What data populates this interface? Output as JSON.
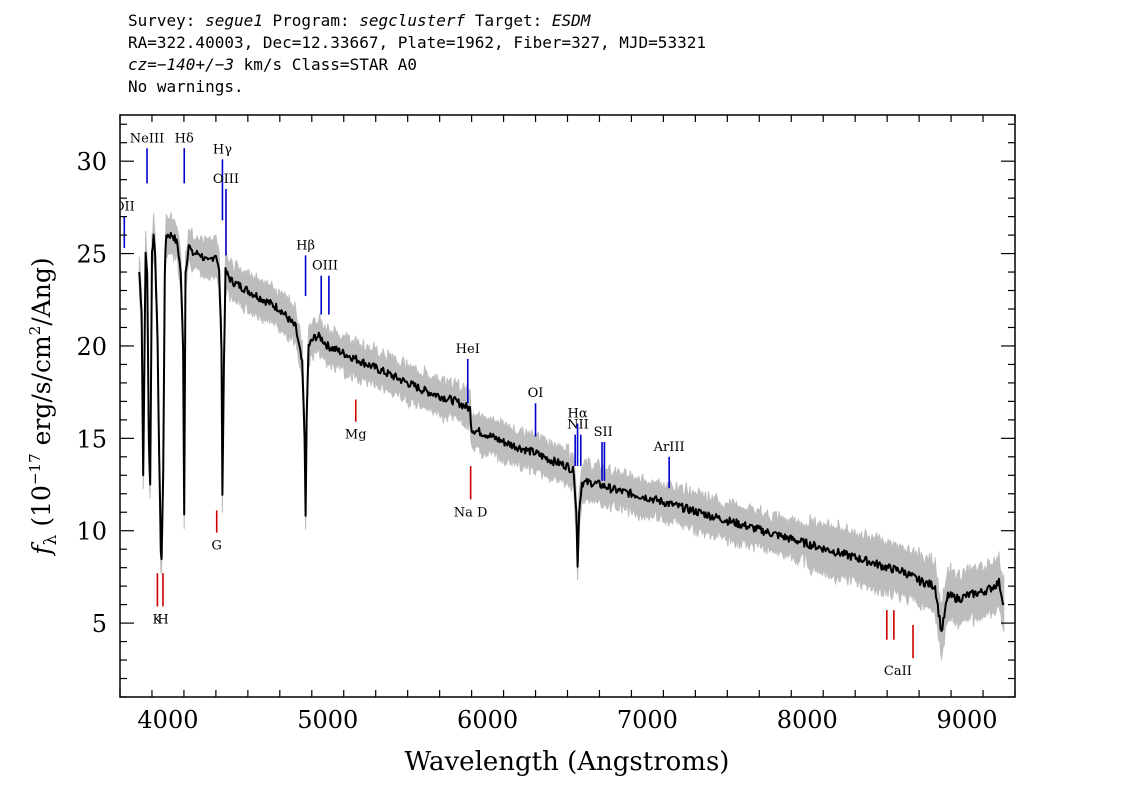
{
  "header": {
    "survey_label": "Survey:",
    "survey": "segue1",
    "program_label": "Program:",
    "program": "segclusterf",
    "target_label": "Target:",
    "target": "ESDM",
    "line2": "RA=322.40003, Dec=12.33667, Plate=1962, Fiber=327, MJD=53321",
    "cz_label": "cz=",
    "cz_value": "−140+/−3",
    "cz_rest": " km/s Class=STAR A0",
    "line4": "No warnings."
  },
  "chart_data": {
    "type": "line",
    "title": "Survey: segue1 Program: segclusterf Target: ESDM",
    "xlabel": "Wavelength (Angstroms)",
    "ylabel": "fλ (10⁻¹⁷ erg/s/cm²/Ang)",
    "xlim": [
      3700,
      9300
    ],
    "ylim": [
      1,
      32.5
    ],
    "xticks": [
      4000,
      5000,
      6000,
      7000,
      8000,
      9000
    ],
    "yticks": [
      5,
      10,
      15,
      20,
      25,
      30
    ],
    "series": [
      {
        "x": [
          3820,
          3835,
          3845,
          3860,
          3870,
          3880,
          3889,
          3900,
          3910,
          3920,
          3935,
          3945,
          3955,
          3960,
          3970,
          3980,
          3990,
          4000,
          4030,
          4060,
          4080,
          4095,
          4102,
          4110,
          4130,
          4150,
          4200,
          4250,
          4300,
          4320,
          4335,
          4341,
          4350,
          4360,
          4400,
          4500,
          4600,
          4700,
          4800,
          4840,
          4855,
          4861,
          4868,
          4880,
          4920,
          4950,
          5000,
          5100,
          5200,
          5300,
          5400,
          5500,
          5600,
          5700,
          5800,
          5890,
          5900,
          6000,
          6100,
          6200,
          6300,
          6400,
          6500,
          6540,
          6555,
          6563,
          6572,
          6590,
          6650,
          6700,
          6800,
          6900,
          7000,
          7200,
          7400,
          7600,
          7800,
          8000,
          8200,
          8400,
          8500,
          8600,
          8700,
          8800,
          8840,
          8880,
          8950,
          9000,
          9100,
          9150,
          9200,
          9230
        ],
        "y": [
          24,
          22,
          13,
          25,
          24,
          15,
          12.5,
          25,
          26,
          25,
          20,
          14,
          9,
          8.5,
          13,
          24,
          26,
          26,
          26,
          25.5,
          24,
          20,
          11,
          24,
          25.5,
          25,
          25,
          24.5,
          25,
          24,
          20,
          12,
          19,
          24,
          23.5,
          23,
          22.5,
          22,
          21,
          19,
          15,
          11,
          16,
          20,
          20.5,
          20.5,
          20,
          19.6,
          19.2,
          18.8,
          18.4,
          18,
          17.6,
          17.3,
          17,
          16.6,
          15.5,
          15.2,
          14.8,
          14.5,
          14.2,
          13.8,
          13.5,
          13.2,
          11,
          8,
          11,
          12.6,
          12.6,
          12.5,
          12.2,
          12,
          11.8,
          11.3,
          10.8,
          10.3,
          9.8,
          9.3,
          8.8,
          8.3,
          8,
          7.8,
          7.3,
          7,
          4.5,
          6.5,
          6.3,
          6.5,
          6.7,
          6.9,
          7.2,
          6
        ]
      }
    ],
    "emission_lines": [
      {
        "label": "OII",
        "x": 3727,
        "y": [
          25.3,
          27
        ]
      },
      {
        "label": "NeIII",
        "x": 3869,
        "y": [
          28.8,
          30.7
        ]
      },
      {
        "label": "Hδ",
        "x": 4102,
        "y": [
          28.8,
          30.7
        ]
      },
      {
        "label": "Hγ",
        "x": 4341,
        "y": [
          26.8,
          30.1
        ]
      },
      {
        "label": "OIII",
        "x": 4363,
        "y": [
          24.9,
          28.5
        ]
      },
      {
        "label": "Hβ",
        "x": 4861,
        "y": [
          22.7,
          24.9
        ]
      },
      {
        "label": "OIII",
        "x": 4959,
        "y": [
          21.7,
          23.8
        ]
      },
      {
        "label": "OIII",
        "x": 5007,
        "y": [
          21.7,
          23.8
        ]
      },
      {
        "label": "HeI",
        "x": 5876,
        "y": [
          16.9,
          19.3
        ]
      },
      {
        "label": "OI",
        "x": 6300,
        "y": [
          15.1,
          16.9
        ]
      },
      {
        "label": "NII",
        "x": 6548,
        "y": [
          13.5,
          15.2
        ]
      },
      {
        "label": "Hα",
        "x": 6563,
        "y": [
          13.5,
          15.8
        ]
      },
      {
        "label": "NII",
        "x": 6583,
        "y": [
          13.5,
          15.2
        ]
      },
      {
        "label": "SII",
        "x": 6716,
        "y": [
          12.7,
          14.8
        ]
      },
      {
        "label": "SII",
        "x": 6731,
        "y": [
          12.7,
          14.8
        ]
      },
      {
        "label": "ArIII",
        "x": 7136,
        "y": [
          12.3,
          14
        ]
      }
    ],
    "absorption_lines": [
      {
        "label": "K",
        "x": 3934,
        "y": [
          5.9,
          7.7
        ]
      },
      {
        "label": "H",
        "x": 3969,
        "y": [
          5.9,
          7.7
        ]
      },
      {
        "label": "G",
        "x": 4305,
        "y": [
          9.9,
          11.1
        ]
      },
      {
        "label": "Mg",
        "x": 5175,
        "y": [
          15.9,
          17.1
        ]
      },
      {
        "label": "Na D",
        "x": 5894,
        "y": [
          11.7,
          13.5
        ]
      },
      {
        "label": "CaII",
        "x": 8498,
        "y": [
          4.1,
          5.7
        ]
      },
      {
        "label": "CaII",
        "x": 8542,
        "y": [
          4.1,
          5.7
        ]
      },
      {
        "label": "CaII",
        "x": 8662,
        "y": [
          3.1,
          4.9
        ]
      }
    ],
    "colors": {
      "spectrum": "#000000",
      "error_band": "#bdbdbd",
      "emission": "#0000cc",
      "absorption": "#cc0000"
    }
  }
}
